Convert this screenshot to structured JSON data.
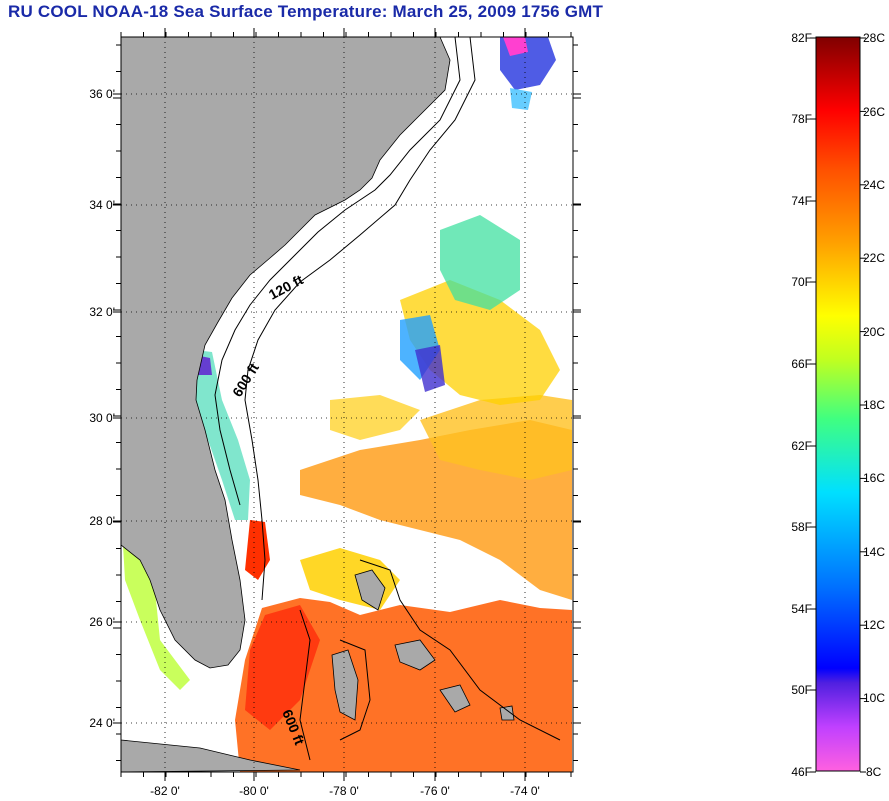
{
  "title": "RU COOL  NOAA-18  Sea Surface Temperature:  March 25, 2009 1756 GMT",
  "map": {
    "lat_ticks": [
      "36 0'",
      "34 0'",
      "32 0'",
      "30 0'",
      "28 0'",
      "26 0'",
      "24 0'"
    ],
    "lon_ticks": [
      "-82 0'",
      "-80 0'",
      "-78 0'",
      "-76 0'",
      "-74 0'"
    ],
    "contour_labels": [
      "120 ft",
      "600 ft",
      "600 ft"
    ],
    "colors": {
      "land": "#a9a9a9",
      "ocean_nodata": "#ffffff"
    }
  },
  "colorbar": {
    "f_labels": [
      "82F",
      "78F",
      "74F",
      "70F",
      "66F",
      "62F",
      "58F",
      "54F",
      "50F",
      "46F"
    ],
    "c_labels": [
      "28C",
      "26C",
      "24C",
      "22C",
      "20C",
      "18C",
      "16C",
      "14C",
      "12C",
      "10C",
      "8C"
    ],
    "range_c": [
      8,
      28
    ],
    "range_f": [
      46,
      82
    ]
  }
}
